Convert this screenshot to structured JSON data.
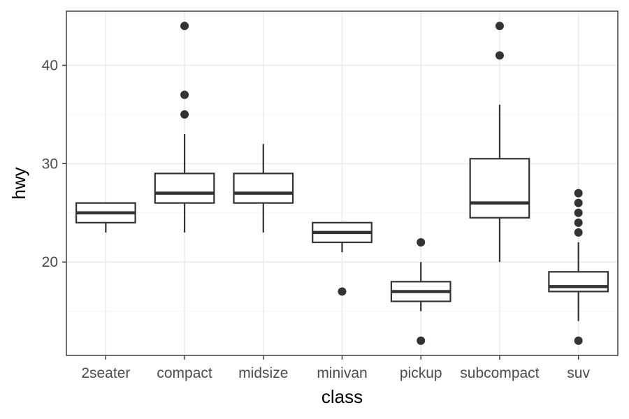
{
  "chart_data": {
    "type": "boxplot",
    "xlabel": "class",
    "ylabel": "hwy",
    "categories": [
      "2seater",
      "compact",
      "midsize",
      "minivan",
      "pickup",
      "subcompact",
      "suv"
    ],
    "ylim": [
      10.5,
      45.5
    ],
    "yticks": [
      20,
      30,
      40
    ],
    "grid": true,
    "boxes": [
      {
        "category": "2seater",
        "lower_whisker": 23,
        "q1": 24,
        "median": 25,
        "q3": 26,
        "upper_whisker": 26,
        "outliers": []
      },
      {
        "category": "compact",
        "lower_whisker": 23,
        "q1": 26,
        "median": 27,
        "q3": 29,
        "upper_whisker": 33,
        "outliers": [
          35,
          37,
          44
        ]
      },
      {
        "category": "midsize",
        "lower_whisker": 23,
        "q1": 26,
        "median": 27,
        "q3": 29,
        "upper_whisker": 32,
        "outliers": []
      },
      {
        "category": "minivan",
        "lower_whisker": 21,
        "q1": 22,
        "median": 23,
        "q3": 24,
        "upper_whisker": 24,
        "outliers": [
          17
        ]
      },
      {
        "category": "pickup",
        "lower_whisker": 15,
        "q1": 16,
        "median": 17,
        "q3": 18,
        "upper_whisker": 20,
        "outliers": [
          12,
          22
        ]
      },
      {
        "category": "subcompact",
        "lower_whisker": 20,
        "q1": 24.5,
        "median": 26,
        "q3": 30.5,
        "upper_whisker": 36,
        "outliers": [
          41,
          44
        ]
      },
      {
        "category": "suv",
        "lower_whisker": 14,
        "q1": 17,
        "median": 17.5,
        "q3": 19,
        "upper_whisker": 22,
        "outliers": [
          12,
          23,
          24,
          25,
          26,
          27
        ]
      }
    ],
    "colors": {
      "box_line": "#333333",
      "grid_major": "#ebebeb",
      "grid_minor": "#f5f5f5",
      "panel_border": "#333333"
    }
  }
}
